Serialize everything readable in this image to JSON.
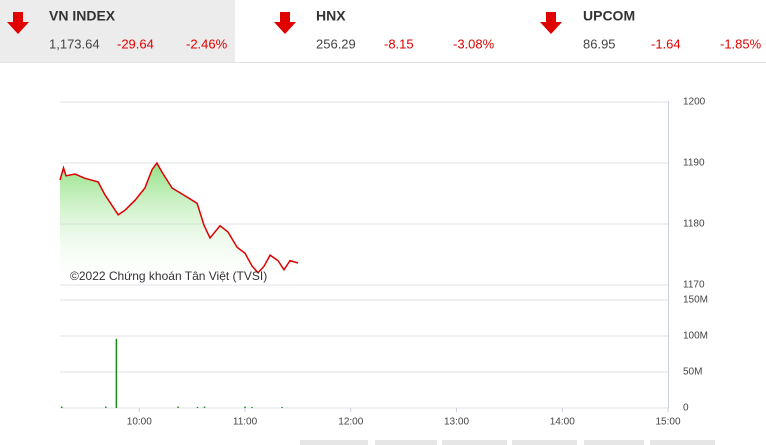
{
  "indices": [
    {
      "name": "VN INDEX",
      "value": "1,173.64",
      "change": "-29.64",
      "percent": "-2.46%"
    },
    {
      "name": "HNX",
      "value": "256.29",
      "change": "-8.15",
      "percent": "-3.08%"
    },
    {
      "name": "UPCOM",
      "value": "86.95",
      "change": "-1.64",
      "percent": "-1.85%"
    }
  ],
  "chart_data": [
    {
      "type": "line",
      "annotation": "©2022 Chứng khoán Tân Việt (TVSI)",
      "color": "#e00000",
      "fill": "#7fdc6f",
      "x": [
        555,
        557,
        558.4,
        563.5,
        569.2,
        576.6,
        580.5,
        588,
        592,
        597.6,
        603.2,
        607.2,
        610,
        612.9,
        618.6,
        626,
        632.8,
        636.7,
        640.1,
        645.8,
        650.3,
        655.5,
        660,
        664,
        667.4,
        670.8,
        674.2,
        678.7,
        682.1,
        685.5,
        690.1
      ],
      "values": [
        1187.2,
        1189.2,
        1187.9,
        1188.2,
        1187.5,
        1186.9,
        1184.8,
        1181.5,
        1182.3,
        1183.9,
        1185.9,
        1188.9,
        1190,
        1188.5,
        1185.9,
        1184.6,
        1183.4,
        1179.8,
        1177.7,
        1179.7,
        1178.7,
        1176.2,
        1175.2,
        1173.1,
        1172,
        1173.1,
        1174.9,
        1174,
        1172.5,
        1174,
        1173.6
      ],
      "xlim": [
        555,
        900
      ],
      "ylim": [
        1170,
        1200
      ],
      "yticks": [
        1170,
        1180,
        1190,
        1200
      ],
      "grid": true
    },
    {
      "type": "bar",
      "color": "#1a8a1a",
      "x": [
        556,
        581,
        587,
        622,
        633,
        637,
        660,
        664,
        681
      ],
      "values": [
        2,
        2,
        96,
        2,
        1.5,
        2,
        2,
        1.5,
        1.5
      ],
      "xlim": [
        555,
        900
      ],
      "xticks": [
        {
          "value": 600,
          "label": "10:00"
        },
        {
          "value": 660,
          "label": "11:00"
        },
        {
          "value": 720,
          "label": "12:00"
        },
        {
          "value": 780,
          "label": "13:00"
        },
        {
          "value": 840,
          "label": "14:00"
        },
        {
          "value": 900,
          "label": "15:00"
        }
      ],
      "ylim": [
        0,
        150
      ],
      "yticks": [
        0,
        {
          "value": 50,
          "label": "50M"
        },
        {
          "value": 100,
          "label": "100M"
        },
        {
          "value": 150,
          "label": "150M"
        }
      ],
      "grid": true
    }
  ]
}
